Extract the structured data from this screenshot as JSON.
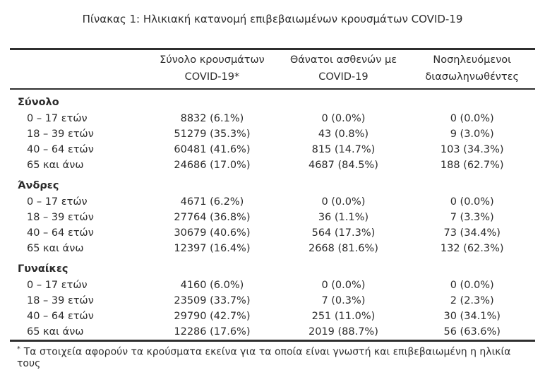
{
  "title": "Πίνακας 1: Ηλικιακή κατανομή επιβεβαιωμένων κρουσμάτων COVID-19",
  "colors": {
    "background": "#ffffff",
    "text": "#2b2b2b",
    "border": "#2f2f2f"
  },
  "table": {
    "col_headers": [
      {
        "line1": "Σύνολο κρουσμάτων",
        "line2": "COVID-19*"
      },
      {
        "line1": "Θάνατοι ασθενών με",
        "line2": "COVID-19"
      },
      {
        "line1": "Νοσηλευόμενοι",
        "line2": "διασωληνωθέντες"
      }
    ],
    "sections": [
      {
        "label": "Σύνολο",
        "rows": [
          {
            "age": "0 – 17 ετών",
            "cases": "8832 (6.1%)",
            "deaths": "0 (0.0%)",
            "intubated": "0 (0.0%)"
          },
          {
            "age": "18 – 39 ετών",
            "cases": "51279 (35.3%)",
            "deaths": "43 (0.8%)",
            "intubated": "9 (3.0%)"
          },
          {
            "age": "40 – 64 ετών",
            "cases": "60481 (41.6%)",
            "deaths": "815 (14.7%)",
            "intubated": "103 (34.3%)"
          },
          {
            "age": "65 και άνω",
            "cases": "24686 (17.0%)",
            "deaths": "4687 (84.5%)",
            "intubated": "188 (62.7%)"
          }
        ]
      },
      {
        "label": "Άνδρες",
        "rows": [
          {
            "age": "0 – 17 ετών",
            "cases": "4671 (6.2%)",
            "deaths": "0 (0.0%)",
            "intubated": "0 (0.0%)"
          },
          {
            "age": "18 – 39 ετών",
            "cases": "27764 (36.8%)",
            "deaths": "36 (1.1%)",
            "intubated": "7 (3.3%)"
          },
          {
            "age": "40 – 64 ετών",
            "cases": "30679 (40.6%)",
            "deaths": "564 (17.3%)",
            "intubated": "73 (34.4%)"
          },
          {
            "age": "65 και άνω",
            "cases": "12397 (16.4%)",
            "deaths": "2668 (81.6%)",
            "intubated": "132 (62.3%)"
          }
        ]
      },
      {
        "label": "Γυναίκες",
        "rows": [
          {
            "age": "0 – 17 ετών",
            "cases": "4160 (6.0%)",
            "deaths": "0 (0.0%)",
            "intubated": "0 (0.0%)"
          },
          {
            "age": "18 – 39 ετών",
            "cases": "23509 (33.7%)",
            "deaths": "7 (0.3%)",
            "intubated": "2 (2.3%)"
          },
          {
            "age": "40 – 64 ετών",
            "cases": "29790 (42.7%)",
            "deaths": "251 (11.0%)",
            "intubated": "30 (34.1%)"
          },
          {
            "age": "65 και άνω",
            "cases": "12286 (17.6%)",
            "deaths": "2019 (88.7%)",
            "intubated": "56 (63.6%)"
          }
        ]
      }
    ]
  },
  "footnote": {
    "marker": "*",
    "text": "Τα στοιχεία αφορούν τα κρούσματα εκείνα για τα οποία είναι γνωστή και επιβεβαιωμένη η ηλικία τους"
  }
}
